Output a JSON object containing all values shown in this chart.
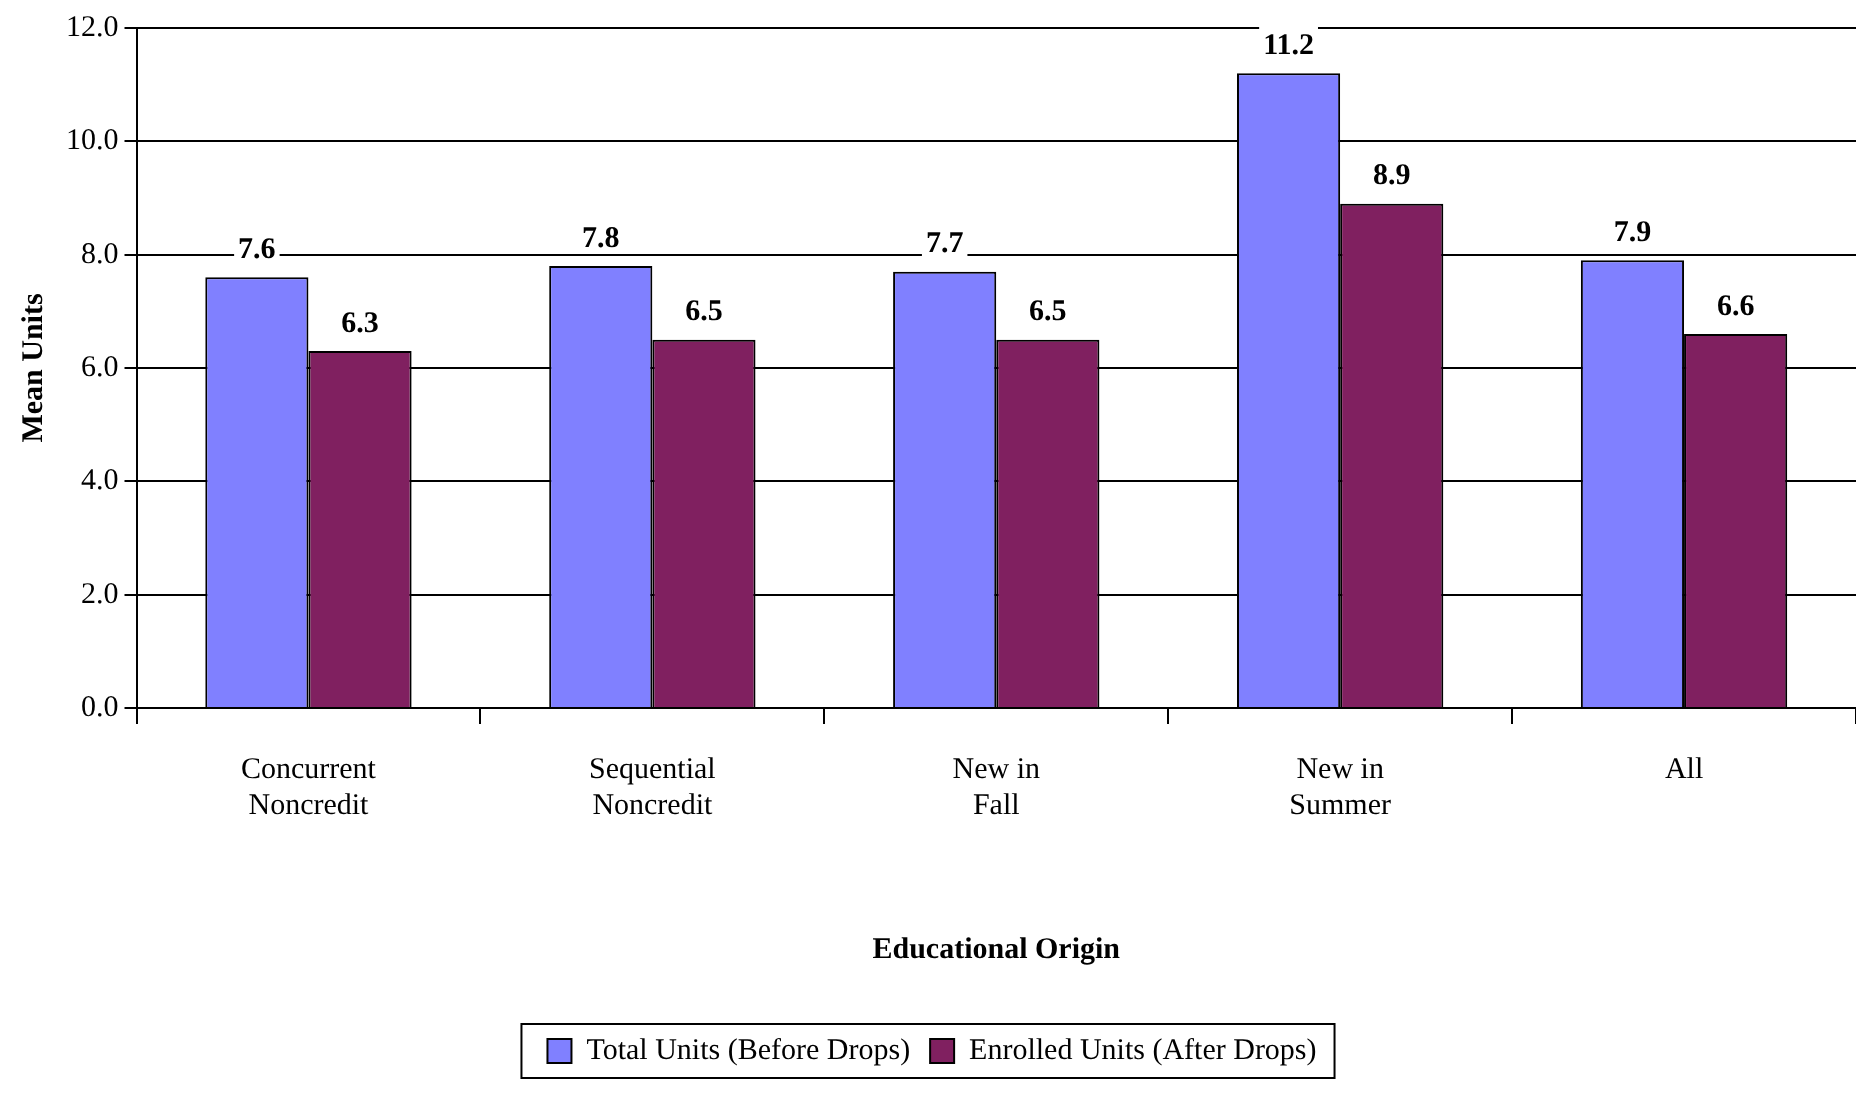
{
  "chart_data": {
    "type": "bar",
    "xlabel": "Educational Origin",
    "ylabel": "Mean Units",
    "categories": [
      "Concurrent Noncredit",
      "Sequential Noncredit",
      "New in Fall",
      "New in Summer",
      "All"
    ],
    "series": [
      {
        "name": "Total Units (Before Drops)",
        "color": "#8080ff",
        "values": [
          7.6,
          7.8,
          7.7,
          11.2,
          7.9
        ]
      },
      {
        "name": "Enrolled Units (After Drops)",
        "color": "#802060",
        "values": [
          6.3,
          6.5,
          6.5,
          8.9,
          6.6
        ]
      }
    ],
    "ylim": [
      0,
      12
    ],
    "yticks": [
      {
        "value": 0,
        "label": "0.0"
      },
      {
        "value": 2,
        "label": "2.0"
      },
      {
        "value": 4,
        "label": "4.0"
      },
      {
        "value": 6,
        "label": "6.0"
      },
      {
        "value": 8,
        "label": "8.0"
      },
      {
        "value": 10,
        "label": "10.0"
      },
      {
        "value": 12,
        "label": "12.0"
      }
    ],
    "grid": "y",
    "legend": "bottom",
    "data_labels": true
  }
}
